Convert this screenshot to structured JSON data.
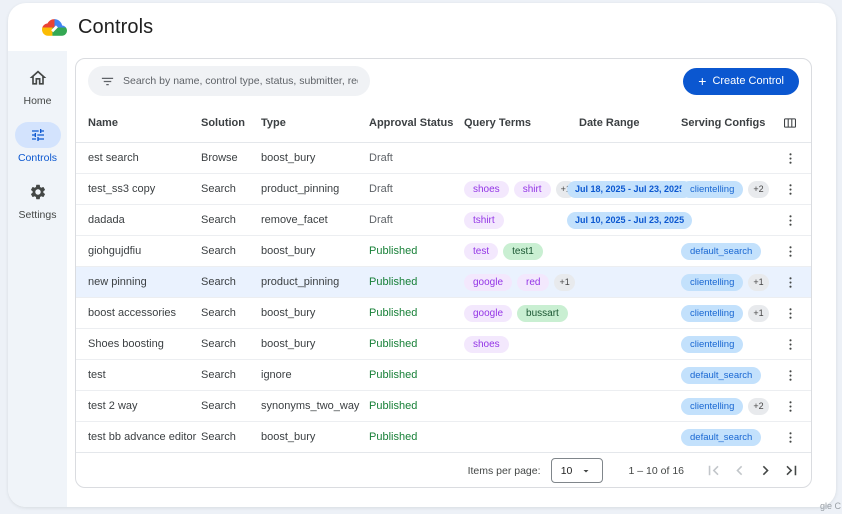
{
  "header": {
    "title": "Controls"
  },
  "sidebar": {
    "items": [
      {
        "label": "Home"
      },
      {
        "label": "Controls"
      },
      {
        "label": "Settings"
      }
    ]
  },
  "toolbar": {
    "search_placeholder": "Search by name, control type, status, submitter, requested on",
    "plus_glyph": "+",
    "create_label": "Create Control"
  },
  "table": {
    "columns": [
      "Name",
      "Solution",
      "Type",
      "Approval Status",
      "Query Terms",
      "Date Range",
      "Serving Configs"
    ],
    "rows": [
      {
        "name": "est search",
        "solution": "Browse",
        "type": "boost_bury",
        "status": "Draft",
        "query_terms": [],
        "query_extra": "",
        "date_range": "",
        "serving_configs": [],
        "serving_extra": "",
        "highlighted": false
      },
      {
        "name": "test_ss3 copy",
        "solution": "Search",
        "type": "product_pinning",
        "status": "Draft",
        "query_terms": [
          {
            "label": "shoes",
            "color": "purple"
          },
          {
            "label": "shirt",
            "color": "purple"
          }
        ],
        "query_extra": "+1",
        "date_range": "Jul 18, 2025 - Jul 23, 2025",
        "serving_configs": [
          "clientelling"
        ],
        "serving_extra": "+2",
        "highlighted": false
      },
      {
        "name": "dadada",
        "solution": "Search",
        "type": "remove_facet",
        "status": "Draft",
        "query_terms": [
          {
            "label": "tshirt",
            "color": "purple"
          }
        ],
        "query_extra": "",
        "date_range": "Jul 10, 2025 - Jul 23, 2025",
        "serving_configs": [],
        "serving_extra": "",
        "highlighted": false
      },
      {
        "name": "giohgujdfiu",
        "solution": "Search",
        "type": "boost_bury",
        "status": "Published",
        "query_terms": [
          {
            "label": "test",
            "color": "purple"
          },
          {
            "label": "test1",
            "color": "green"
          }
        ],
        "query_extra": "",
        "date_range": "",
        "serving_configs": [
          "default_search"
        ],
        "serving_extra": "",
        "highlighted": false
      },
      {
        "name": "new pinning",
        "solution": "Search",
        "type": "product_pinning",
        "status": "Published",
        "query_terms": [
          {
            "label": "google",
            "color": "purple"
          },
          {
            "label": "red",
            "color": "purple"
          }
        ],
        "query_extra": "+1",
        "date_range": "",
        "serving_configs": [
          "clientelling"
        ],
        "serving_extra": "+1",
        "highlighted": true
      },
      {
        "name": "boost accessories",
        "solution": "Search",
        "type": "boost_bury",
        "status": "Published",
        "query_terms": [
          {
            "label": "google",
            "color": "purple"
          },
          {
            "label": "bussart",
            "color": "green"
          }
        ],
        "query_extra": "",
        "date_range": "",
        "serving_configs": [
          "clientelling"
        ],
        "serving_extra": "+1",
        "highlighted": false
      },
      {
        "name": "Shoes boosting",
        "solution": "Search",
        "type": "boost_bury",
        "status": "Published",
        "query_terms": [
          {
            "label": "shoes",
            "color": "purple"
          }
        ],
        "query_extra": "",
        "date_range": "",
        "serving_configs": [
          "clientelling"
        ],
        "serving_extra": "",
        "highlighted": false
      },
      {
        "name": "test",
        "solution": "Search",
        "type": "ignore",
        "status": "Published",
        "query_terms": [],
        "query_extra": "",
        "date_range": "",
        "serving_configs": [
          "default_search"
        ],
        "serving_extra": "",
        "highlighted": false
      },
      {
        "name": "test 2 way",
        "solution": "Search",
        "type": "synonyms_two_way",
        "status": "Published",
        "query_terms": [],
        "query_extra": "",
        "date_range": "",
        "serving_configs": [
          "clientelling"
        ],
        "serving_extra": "+2",
        "highlighted": false
      },
      {
        "name": "test bb advance editor",
        "solution": "Search",
        "type": "boost_bury",
        "status": "Published",
        "query_terms": [],
        "query_extra": "",
        "date_range": "",
        "serving_configs": [
          "default_search"
        ],
        "serving_extra": "",
        "highlighted": false
      }
    ]
  },
  "pagination": {
    "items_per_page_label": "Items per page:",
    "page_size": "10",
    "range_label": "1 – 10 of 16",
    "nav": {
      "first_enabled": false,
      "prev_enabled": false,
      "next_enabled": true,
      "last_enabled": true
    }
  },
  "colors": {
    "accent": "#0b57d0",
    "published": "#188038",
    "draft": "#5f6368",
    "chip_purple_bg": "#f3e8fd",
    "chip_purple_text": "#9334e6",
    "chip_green_bg": "#c9efd2",
    "chip_green_text": "#1a5632",
    "chip_blue_bg": "#c3e1fc",
    "chip_blue_text": "#1967d2",
    "chip_gray_bg": "#e8eaed",
    "active_pill": "#d3e3fd",
    "sidebar_bg": "#f0f4f9"
  },
  "watermark": {
    "text": "gle C"
  }
}
